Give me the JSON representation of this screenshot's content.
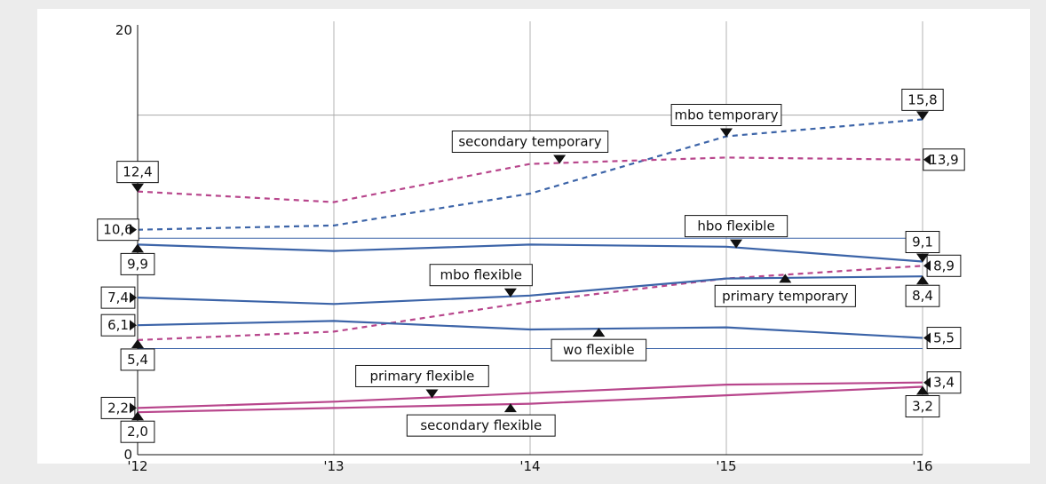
{
  "chart_data": {
    "type": "line",
    "title": "",
    "xlabel": "",
    "ylabel": "",
    "categories": [
      "'12",
      "'13",
      "'14",
      "'15",
      "'16"
    ],
    "ylim": [
      0,
      20
    ],
    "y_ticks": [
      "0",
      "20"
    ],
    "grid": true,
    "reference_lines": [
      16.0,
      10.2,
      5.0
    ],
    "series": [
      {
        "name": "mbo temporary",
        "values": [
          10.6,
          10.8,
          12.3,
          15.0,
          15.8
        ],
        "color": "#3c64a8",
        "dash": true,
        "start_label": "10,6",
        "end_label": "15,8"
      },
      {
        "name": "secondary temporary",
        "values": [
          12.4,
          11.9,
          13.7,
          14.0,
          13.9
        ],
        "color": "#b8468c",
        "dash": true,
        "start_label": "12,4",
        "end_label": "13,9"
      },
      {
        "name": "hbo flexible",
        "values": [
          9.9,
          9.6,
          9.9,
          9.8,
          9.1
        ],
        "color": "#3c64a8",
        "dash": false,
        "start_label": "9,9",
        "end_label": "9,1"
      },
      {
        "name": "primary temporary",
        "values": [
          5.4,
          5.8,
          7.2,
          8.3,
          8.9
        ],
        "color": "#b8468c",
        "dash": true,
        "start_label": "5,4",
        "end_label": "8,9"
      },
      {
        "name": "mbo flexible",
        "values": [
          7.4,
          7.1,
          7.5,
          8.3,
          8.4
        ],
        "color": "#3c64a8",
        "dash": false,
        "start_label": "7,4",
        "end_label": "8,4"
      },
      {
        "name": "wo flexible",
        "values": [
          6.1,
          6.3,
          5.9,
          6.0,
          5.5
        ],
        "color": "#3c64a8",
        "dash": false,
        "start_label": "6,1",
        "end_label": "5,5"
      },
      {
        "name": "primary flexible",
        "values": [
          2.2,
          2.5,
          2.9,
          3.3,
          3.4
        ],
        "color": "#b8468c",
        "dash": false,
        "start_label": "2,2",
        "end_label": "3,4"
      },
      {
        "name": "secondary flexible",
        "values": [
          2.0,
          2.2,
          2.4,
          2.8,
          3.2
        ],
        "color": "#b8468c",
        "dash": false,
        "start_label": "2,0",
        "end_label": "3,2"
      }
    ],
    "series_labels": [
      {
        "text": "mbo temporary",
        "series": "mbo temporary",
        "at_x": 3.0,
        "side": "above",
        "offset": 0.0
      },
      {
        "text": "secondary temporary",
        "series": "secondary temporary",
        "at_x": 2.15,
        "side": "above",
        "offset": -0.15
      },
      {
        "text": "hbo flexible",
        "series": "hbo flexible",
        "at_x": 3.05,
        "side": "above",
        "offset": 0.0
      },
      {
        "text": "mbo flexible",
        "series": "mbo flexible",
        "at_x": 1.9,
        "side": "above",
        "offset": -0.15
      },
      {
        "text": "primary temporary",
        "series": "primary temporary",
        "at_x": 3.3,
        "side": "below",
        "offset": 0.0
      },
      {
        "text": "wo flexible",
        "series": "wo flexible",
        "at_x": 2.35,
        "side": "below",
        "offset": 0.0
      },
      {
        "text": "primary flexible",
        "series": "primary flexible",
        "at_x": 1.5,
        "side": "above",
        "offset": -0.05
      },
      {
        "text": "secondary flexible",
        "series": "secondary flexible",
        "at_x": 1.9,
        "side": "below",
        "offset": -0.15
      }
    ]
  }
}
